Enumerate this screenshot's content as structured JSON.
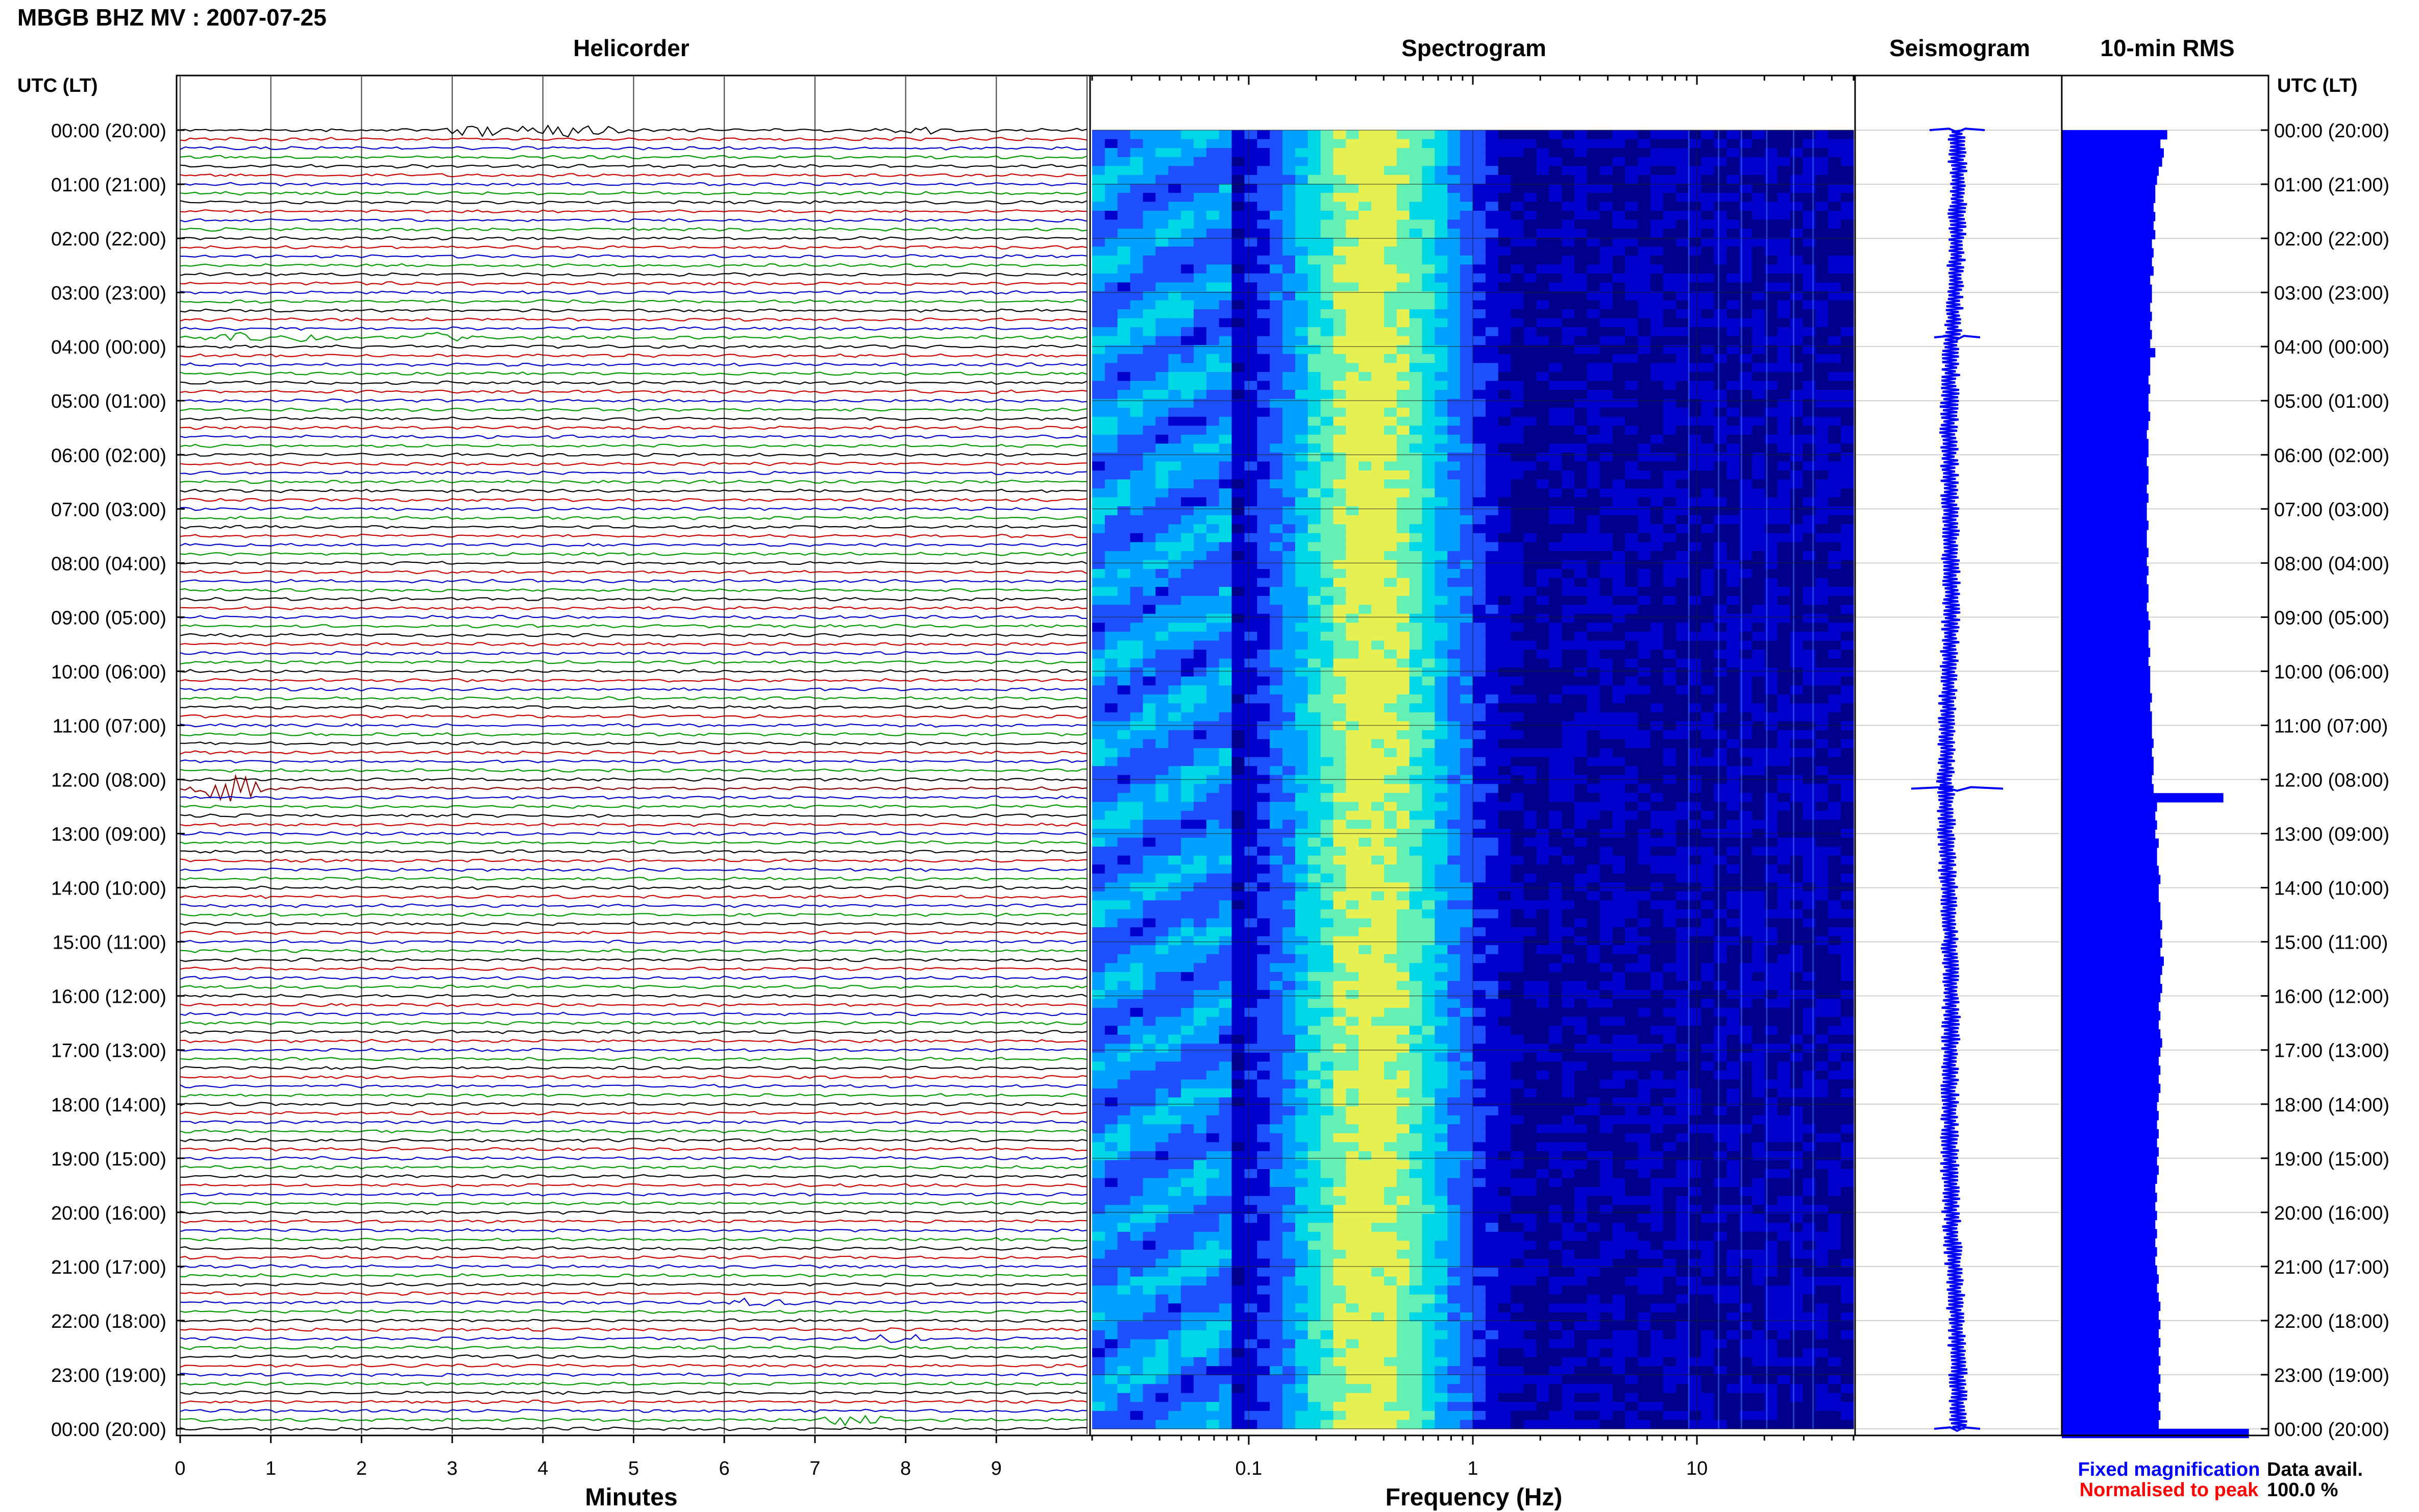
{
  "title": "MBGB BHZ MV : 2007-07-25",
  "panels": {
    "helicorder": "Helicorder",
    "spectrogram": "Spectrogram",
    "seismogram": "Seismogram",
    "rms": "10-min RMS"
  },
  "time_axis_label": "UTC (LT)",
  "time_labels": [
    "00:00 (20:00)",
    "01:00 (21:00)",
    "02:00 (22:00)",
    "03:00 (23:00)",
    "04:00 (00:00)",
    "05:00 (01:00)",
    "06:00 (02:00)",
    "07:00 (03:00)",
    "08:00 (04:00)",
    "09:00 (05:00)",
    "10:00 (06:00)",
    "11:00 (07:00)",
    "12:00 (08:00)",
    "13:00 (09:00)",
    "14:00 (10:00)",
    "15:00 (11:00)",
    "16:00 (12:00)",
    "17:00 (13:00)",
    "18:00 (14:00)",
    "19:00 (15:00)",
    "20:00 (16:00)",
    "21:00 (17:00)",
    "22:00 (18:00)",
    "23:00 (19:00)",
    "00:00 (20:00)"
  ],
  "minutes_axis": {
    "label": "Minutes",
    "ticks": [
      "0",
      "1",
      "2",
      "3",
      "4",
      "5",
      "6",
      "7",
      "8",
      "9"
    ]
  },
  "frequency_axis": {
    "label": "Frequency (Hz)",
    "ticks": [
      "0.1",
      "1",
      "10"
    ]
  },
  "legend": {
    "fixed": "Fixed magnification",
    "normalised": "Normalised to peak",
    "fixed_color": "#0000ff",
    "normalised_color": "#ff0000"
  },
  "data_avail": {
    "label": "Data avail.",
    "value": "100.0 %"
  },
  "colors": {
    "helicorder_cycle": [
      "#000000",
      "#cc0000",
      "#0000cc",
      "#009900"
    ],
    "rms_bar": "#0000ff",
    "seismogram": "#0000ff",
    "spectrogram_scale": [
      "#00008b",
      "#0000cd",
      "#1e50ff",
      "#00a0ff",
      "#00d7e6",
      "#64f0b4",
      "#e6f050"
    ]
  },
  "chart_data": {
    "type": "composite",
    "station": "MBGB BHZ MV",
    "date": "2007-07-25",
    "helicorder": {
      "lines_per_hour": 6,
      "total_lines": 145,
      "x_range_minutes": [
        0,
        10
      ],
      "events": [
        {
          "hour": 0.0,
          "minute": 3.3,
          "amplitude": 1.6
        },
        {
          "hour": 0.0,
          "minute": 4.1,
          "amplitude": 2.2
        },
        {
          "hour": 0.0,
          "minute": 4.5,
          "amplitude": 1.6
        },
        {
          "hour": 0.0,
          "minute": 8.2,
          "amplitude": 1.2
        },
        {
          "hour": 3.83,
          "minute": 0.6,
          "amplitude": 1.2
        },
        {
          "hour": 3.83,
          "minute": 1.5,
          "amplitude": 1.0
        },
        {
          "hour": 3.83,
          "minute": 2.8,
          "amplitude": 1.4
        },
        {
          "hour": 12.17,
          "minute": 0.6,
          "amplitude": 5.0
        },
        {
          "hour": 21.67,
          "minute": 6.4,
          "amplitude": 1.2
        },
        {
          "hour": 22.33,
          "minute": 7.9,
          "amplitude": 1.4
        },
        {
          "hour": 23.83,
          "minute": 7.4,
          "amplitude": 2.0
        }
      ]
    },
    "spectrogram": {
      "freq_range_hz": [
        0.02,
        50
      ],
      "scale": "log",
      "peak_band_hz": [
        0.2,
        0.6
      ]
    },
    "seismogram": {
      "spikes": [
        {
          "hour": 0.0,
          "amplitude": 0.6
        },
        {
          "hour": 3.83,
          "amplitude": 0.5
        },
        {
          "hour": 12.17,
          "amplitude": 1.0
        },
        {
          "hour": 24.0,
          "amplitude": 0.5
        }
      ]
    },
    "rms": {
      "interval_minutes": 10,
      "values": [
        0.62,
        0.58,
        0.6,
        0.59,
        0.57,
        0.56,
        0.55,
        0.55,
        0.54,
        0.55,
        0.54,
        0.55,
        0.53,
        0.54,
        0.53,
        0.54,
        0.52,
        0.53,
        0.53,
        0.52,
        0.53,
        0.52,
        0.53,
        0.52,
        0.55,
        0.52,
        0.52,
        0.51,
        0.52,
        0.51,
        0.51,
        0.52,
        0.51,
        0.5,
        0.51,
        0.51,
        0.5,
        0.51,
        0.51,
        0.5,
        0.51,
        0.5,
        0.5,
        0.51,
        0.5,
        0.5,
        0.51,
        0.5,
        0.51,
        0.5,
        0.51,
        0.51,
        0.5,
        0.51,
        0.52,
        0.51,
        0.51,
        0.52,
        0.51,
        0.52,
        0.52,
        0.52,
        0.53,
        0.52,
        0.53,
        0.53,
        0.53,
        0.54,
        0.53,
        0.54,
        0.54,
        0.53,
        0.54,
        0.95,
        0.56,
        0.55,
        0.56,
        0.55,
        0.57,
        0.56,
        0.56,
        0.57,
        0.58,
        0.57,
        0.57,
        0.58,
        0.58,
        0.59,
        0.58,
        0.59,
        0.58,
        0.6,
        0.59,
        0.58,
        0.59,
        0.58,
        0.57,
        0.58,
        0.57,
        0.58,
        0.59,
        0.58,
        0.57,
        0.58,
        0.57,
        0.58,
        0.57,
        0.56,
        0.57,
        0.56,
        0.57,
        0.56,
        0.57,
        0.56,
        0.57,
        0.56,
        0.55,
        0.56,
        0.55,
        0.56,
        0.55,
        0.56,
        0.55,
        0.56,
        0.55,
        0.56,
        0.57,
        0.56,
        0.57,
        0.58,
        0.57,
        0.58,
        0.57,
        0.58,
        0.57,
        0.58,
        0.57,
        0.58,
        0.57,
        0.58,
        0.57,
        0.58,
        0.57,
        1.1
      ],
      "xlim": [
        0,
        1.2
      ]
    }
  }
}
